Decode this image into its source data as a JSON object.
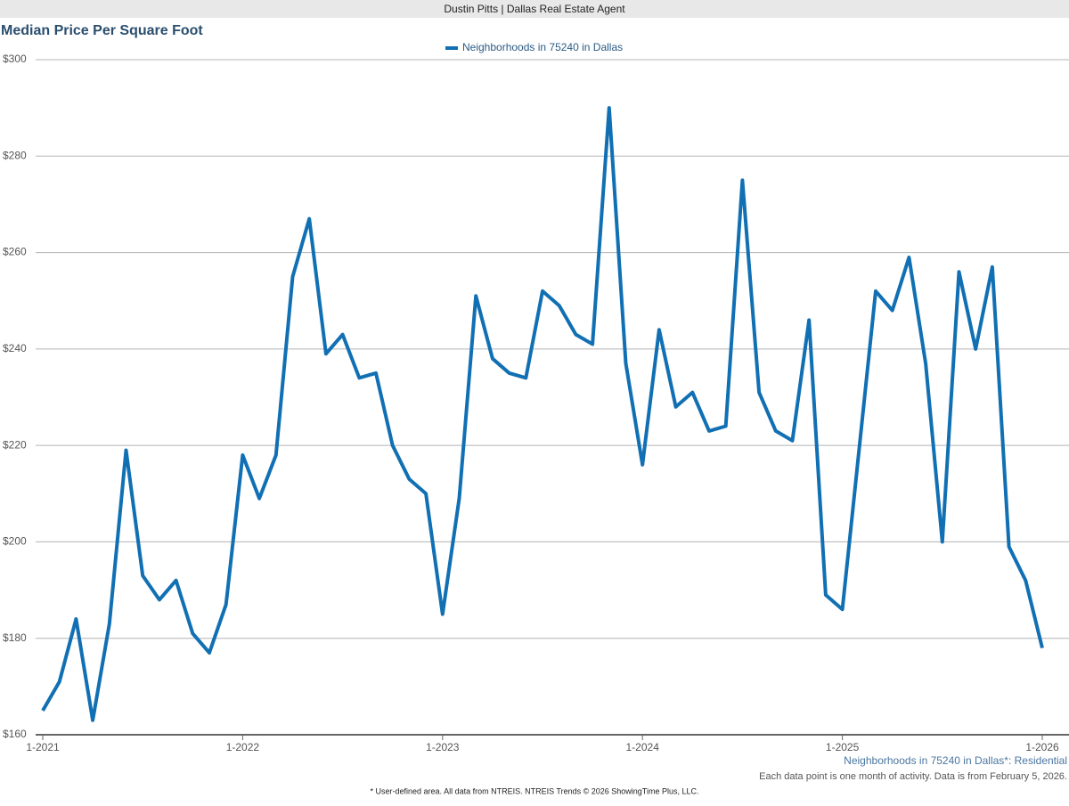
{
  "header": {
    "title": "Dustin Pitts | Dallas Real Estate Agent"
  },
  "chart_data": {
    "type": "line",
    "title": "Median Price Per Square Foot",
    "categories": [
      "1-2021",
      null,
      null,
      null,
      null,
      null,
      null,
      null,
      null,
      null,
      null,
      null,
      "1-2022",
      null,
      null,
      null,
      null,
      null,
      null,
      null,
      null,
      null,
      null,
      null,
      "1-2023",
      null,
      null,
      null,
      null,
      null,
      null,
      null,
      null,
      null,
      null,
      null,
      "1-2024",
      null,
      null,
      null,
      null,
      null,
      null,
      null,
      null,
      null,
      null,
      null,
      "1-2025",
      null,
      null,
      null,
      null,
      null,
      null,
      null,
      null,
      null,
      null,
      null,
      "1-2026"
    ],
    "series": [
      {
        "name": "Neighborhoods in 75240 in Dallas",
        "color": "#1170b3",
        "values": [
          165,
          171,
          184,
          163,
          183,
          219,
          193,
          188,
          192,
          181,
          177,
          187,
          218,
          209,
          218,
          255,
          267,
          239,
          243,
          234,
          235,
          220,
          213,
          210,
          185,
          209,
          251,
          238,
          235,
          234,
          252,
          249,
          243,
          241,
          290,
          237,
          216,
          244,
          228,
          231,
          223,
          224,
          275,
          231,
          223,
          221,
          246,
          189,
          186,
          219,
          252,
          248,
          259,
          237,
          200,
          256,
          240,
          257,
          199,
          192,
          178
        ]
      }
    ],
    "ylim": [
      160,
      300
    ],
    "yticks": [
      {
        "value": 160,
        "label": "$160"
      },
      {
        "value": 180,
        "label": "$180"
      },
      {
        "value": 200,
        "label": "$200"
      },
      {
        "value": 220,
        "label": "$220"
      },
      {
        "value": 240,
        "label": "$240"
      },
      {
        "value": 260,
        "label": "$260"
      },
      {
        "value": 280,
        "label": "$280"
      },
      {
        "value": 300,
        "label": "$300"
      }
    ],
    "grid": true,
    "legend": "top"
  },
  "footer": {
    "series_note": "Neighborhoods in 75240 in Dallas*: Residential",
    "data_note": "Each data point is one month of activity. Data is from February 5, 2026.",
    "source": "* User-defined area. All data from NTREIS. NTREIS Trends © 2026 ShowingTime Plus, LLC."
  }
}
